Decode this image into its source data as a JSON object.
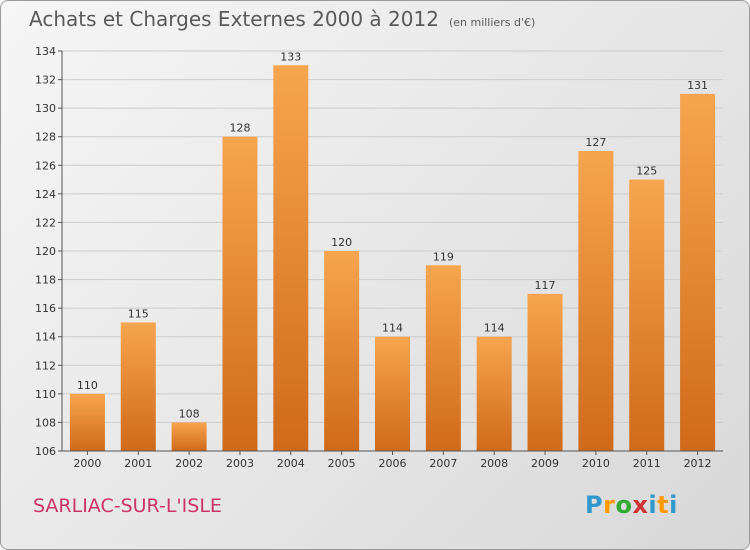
{
  "header": {
    "title": "Achats et Charges Externes 2000 à 2012",
    "subtitle": "(en milliers d'€)"
  },
  "footer": {
    "commune": "SARLIAC-SUR-L'ISLE",
    "logo_letters": [
      "P",
      "r",
      "o",
      "x",
      "i",
      "t",
      "i"
    ],
    "logo_colors": [
      "#3399cc",
      "#ff9900",
      "#33aa33",
      "#cc3333",
      "#3399cc",
      "#ff9900",
      "#3399cc"
    ]
  },
  "colors": {
    "bar_light": "#f7a54f",
    "bar_dark": "#cf6a1a",
    "grid": "#cccccc",
    "axis": "#555555"
  },
  "chart_data": {
    "type": "bar",
    "title": "Achats et Charges Externes 2000 à 2012",
    "subtitle": "(en milliers d'€)",
    "categories": [
      "2000",
      "2001",
      "2002",
      "2003",
      "2004",
      "2005",
      "2006",
      "2007",
      "2008",
      "2009",
      "2010",
      "2011",
      "2012"
    ],
    "values": [
      110,
      115,
      108,
      128,
      133,
      120,
      114,
      119,
      114,
      117,
      127,
      125,
      131
    ],
    "ylim": [
      106,
      134
    ],
    "yticks": [
      106,
      108,
      110,
      112,
      114,
      116,
      118,
      120,
      122,
      124,
      126,
      128,
      130,
      132,
      134
    ],
    "grid": true,
    "data_labels": true
  }
}
